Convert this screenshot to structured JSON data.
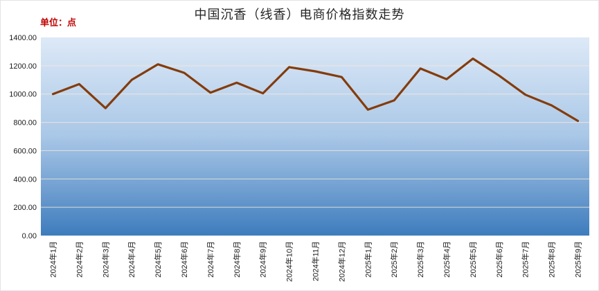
{
  "chart": {
    "title": "中国沉香（线香）电商价格指数走势",
    "unit_label": "单位：点",
    "colors": {
      "line": "#843c0c",
      "plot_bg_top": "#dde9f7",
      "plot_bg_mid": "#a9c7e7",
      "plot_bg_bottom": "#3e7cbd",
      "gridline": "#f5e9da",
      "title_text": "#262626",
      "unit_text": "#c00000",
      "axis_text": "#1a1a1a"
    }
  },
  "chart_data": {
    "type": "line",
    "title": "中国沉香（线香）电商价格指数走势",
    "ylabel": "单位：点",
    "xlabel": "",
    "ylim": [
      0,
      1400
    ],
    "ytick_interval": 200,
    "ytick_labels": [
      "1400.00",
      "1200.00",
      "1000.00",
      "800.00",
      "600.00",
      "400.00",
      "200.00",
      "0.00"
    ],
    "grid": true,
    "legend": false,
    "categories": [
      "2024年1月",
      "2024年2月",
      "2024年3月",
      "2024年4月",
      "2024年5月",
      "2024年6月",
      "2024年7月",
      "2024年8月",
      "2024年9月",
      "2024年10月",
      "2024年11月",
      "2024年12月",
      "2025年1月",
      "2025年2月",
      "2025年3月",
      "2025年4月",
      "2025年5月",
      "2025年6月",
      "2025年7月",
      "2025年8月",
      "2025年9月"
    ],
    "values": [
      1000,
      1070,
      900,
      1100,
      1210,
      1150,
      1010,
      1080,
      1005,
      1190,
      1160,
      1120,
      890,
      955,
      1180,
      1105,
      1250,
      1130,
      995,
      920,
      810
    ]
  }
}
